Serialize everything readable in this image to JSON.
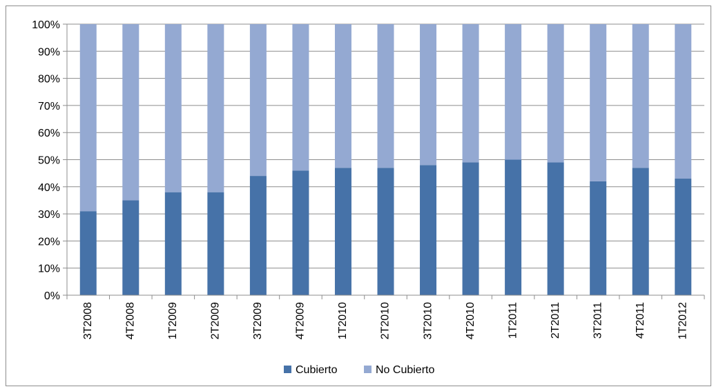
{
  "chart_data": {
    "type": "bar",
    "stacked": true,
    "percent_stacked": true,
    "title": "",
    "xlabel": "",
    "ylabel": "",
    "ylim": [
      0,
      100
    ],
    "y_ticks": [
      "0%",
      "10%",
      "20%",
      "30%",
      "40%",
      "50%",
      "60%",
      "70%",
      "80%",
      "90%",
      "100%"
    ],
    "grid": true,
    "legend_position": "bottom",
    "categories": [
      "3T2008",
      "4T2008",
      "1T2009",
      "2T2009",
      "3T2009",
      "4T2009",
      "1T2010",
      "2T2010",
      "3T2010",
      "4T2010",
      "1T2011",
      "2T2011",
      "3T2011",
      "4T2011",
      "1T2012"
    ],
    "series": [
      {
        "name": "Cubierto",
        "color": "#4672a8",
        "values": [
          31,
          35,
          38,
          38,
          44,
          46,
          47,
          47,
          48,
          49,
          50,
          49,
          42,
          47,
          43
        ]
      },
      {
        "name": "No Cubierto",
        "color": "#94a9d2",
        "values": [
          69,
          65,
          62,
          62,
          56,
          54,
          53,
          53,
          52,
          51,
          50,
          51,
          58,
          53,
          57
        ]
      }
    ]
  }
}
